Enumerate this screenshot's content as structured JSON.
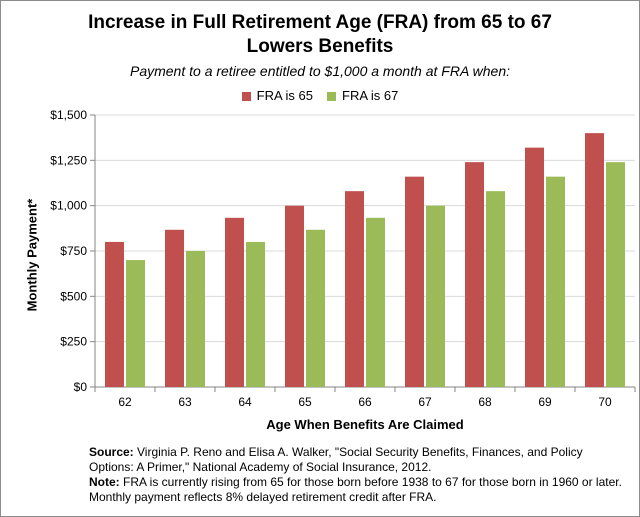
{
  "chart_data": {
    "type": "bar",
    "title_line1": "Increase in Full Retirement Age (FRA) from 65 to 67",
    "title_line2": "Lowers Benefits",
    "subtitle": "Payment to a retiree entitled to $1,000 a month at FRA when:",
    "xlabel": "Age When Benefits Are Claimed",
    "ylabel": "Monthly Payment*",
    "categories": [
      "62",
      "63",
      "64",
      "65",
      "66",
      "67",
      "68",
      "69",
      "70"
    ],
    "series": [
      {
        "name": "FRA is 65",
        "color": "#c0504d",
        "values": [
          800,
          867,
          933,
          1000,
          1080,
          1160,
          1240,
          1320,
          1400
        ]
      },
      {
        "name": "FRA is 67",
        "color": "#9bbb59",
        "values": [
          700,
          750,
          800,
          867,
          933,
          1000,
          1080,
          1160,
          1240
        ]
      }
    ],
    "yticks": [
      "$0",
      "$250",
      "$500",
      "$750",
      "$1,000",
      "$1,250",
      "$1,500"
    ],
    "ylim": [
      0,
      1500
    ],
    "ystep": 250,
    "grid": true,
    "legend_position": "top"
  },
  "notes": {
    "source_label": "Source:",
    "source_text": " Virginia P. Reno and Elisa A. Walker, \"Social Security Benefits, Finances, and Policy Options: A Primer,\" National Academy of Social Insurance, 2012.",
    "note_label": "Note:",
    "note_text": " FRA is currently rising from 65 for those born before 1938 to 67 for those born in 1960 or later. Monthly payment reflects 8% delayed retirement credit after FRA."
  }
}
